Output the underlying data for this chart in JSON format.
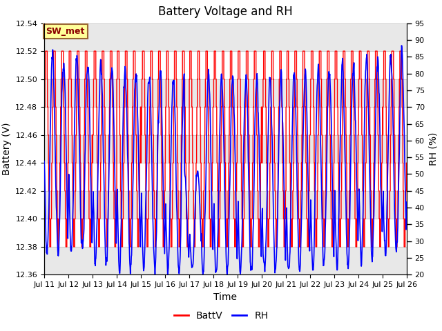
{
  "title": "Battery Voltage and RH",
  "xlabel": "Time",
  "ylabel_left": "Battery (V)",
  "ylabel_right": "RH (%)",
  "ylim_left": [
    12.36,
    12.54
  ],
  "ylim_right": [
    20,
    95
  ],
  "yticks_left": [
    12.36,
    12.38,
    12.4,
    12.42,
    12.44,
    12.46,
    12.48,
    12.5,
    12.52,
    12.54
  ],
  "yticks_right": [
    20,
    25,
    30,
    35,
    40,
    45,
    50,
    55,
    60,
    65,
    70,
    75,
    80,
    85,
    90,
    95
  ],
  "xtick_labels": [
    "Jul 11",
    "Jul 12",
    "Jul 13",
    "Jul 14",
    "Jul 15",
    "Jul 16",
    "Jul 17",
    "Jul 18",
    "Jul 19",
    "Jul 20",
    "Jul 21",
    "Jul 22",
    "Jul 23",
    "Jul 24",
    "Jul 25",
    "Jul 26"
  ],
  "color_batt": "#FF0000",
  "color_rh": "#0000FF",
  "legend_label_batt": "BattV",
  "legend_label_rh": "RH",
  "annotation_text": "SW_met",
  "annotation_bg": "#FFFF99",
  "annotation_border": "#996633",
  "grid_color": "#CCCCCC",
  "bg_band_color": "#E8E8E8",
  "title_fontsize": 12,
  "axis_label_fontsize": 10,
  "tick_fontsize": 8,
  "legend_fontsize": 10,
  "linewidth_batt": 1.0,
  "linewidth_rh": 1.2
}
